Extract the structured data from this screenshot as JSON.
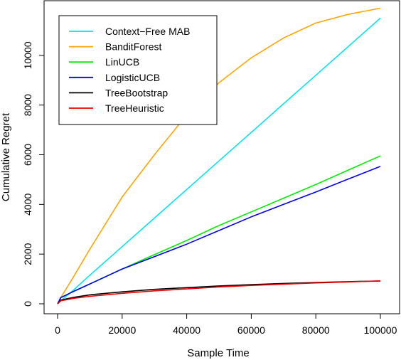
{
  "chart_data": {
    "type": "line",
    "title": "",
    "xlabel": "Sample Time",
    "ylabel": "Cumulative Regret",
    "xlim": [
      0,
      100000
    ],
    "ylim": [
      0,
      12000
    ],
    "grid": false,
    "legend_position": "top-left",
    "x_ticks": [
      0,
      20000,
      40000,
      60000,
      80000,
      100000
    ],
    "x_tick_labels": [
      "0",
      "20000",
      "40000",
      "60000",
      "80000",
      "100000"
    ],
    "y_ticks": [
      0,
      2000,
      4000,
      6000,
      8000,
      10000
    ],
    "y_tick_labels": [
      "0",
      "2000",
      "4000",
      "6000",
      "8000",
      "10000"
    ],
    "x": [
      0,
      1000,
      5000,
      10000,
      20000,
      30000,
      40000,
      50000,
      60000,
      70000,
      80000,
      90000,
      100000
    ],
    "series": [
      {
        "name": "Context−Free MAB",
        "color": "#00e5ee",
        "values": [
          0,
          120,
          560,
          1150,
          2300,
          3450,
          4600,
          5750,
          6900,
          8050,
          9200,
          10350,
          11500
        ]
      },
      {
        "name": "BanditForest",
        "color": "#ffa500",
        "values": [
          0,
          250,
          1100,
          2200,
          4300,
          6000,
          7600,
          8900,
          9900,
          10700,
          11300,
          11650,
          11900
        ]
      },
      {
        "name": "LinUCB",
        "color": "#00ee00",
        "values": [
          0,
          250,
          500,
          800,
          1400,
          1980,
          2550,
          3150,
          3700,
          4250,
          4800,
          5380,
          5950
        ]
      },
      {
        "name": "LogisticUCB",
        "color": "#0000ee",
        "values": [
          0,
          250,
          500,
          800,
          1400,
          1900,
          2400,
          2950,
          3500,
          4000,
          4500,
          5020,
          5530
        ]
      },
      {
        "name": "TreeBootstrap",
        "color": "#000000",
        "values": [
          0,
          150,
          260,
          360,
          480,
          580,
          650,
          720,
          770,
          820,
          860,
          890,
          920
        ]
      },
      {
        "name": "TreeHeuristic",
        "color": "#ee0000",
        "values": [
          0,
          120,
          220,
          300,
          420,
          520,
          600,
          680,
          740,
          790,
          840,
          880,
          920
        ]
      }
    ]
  }
}
